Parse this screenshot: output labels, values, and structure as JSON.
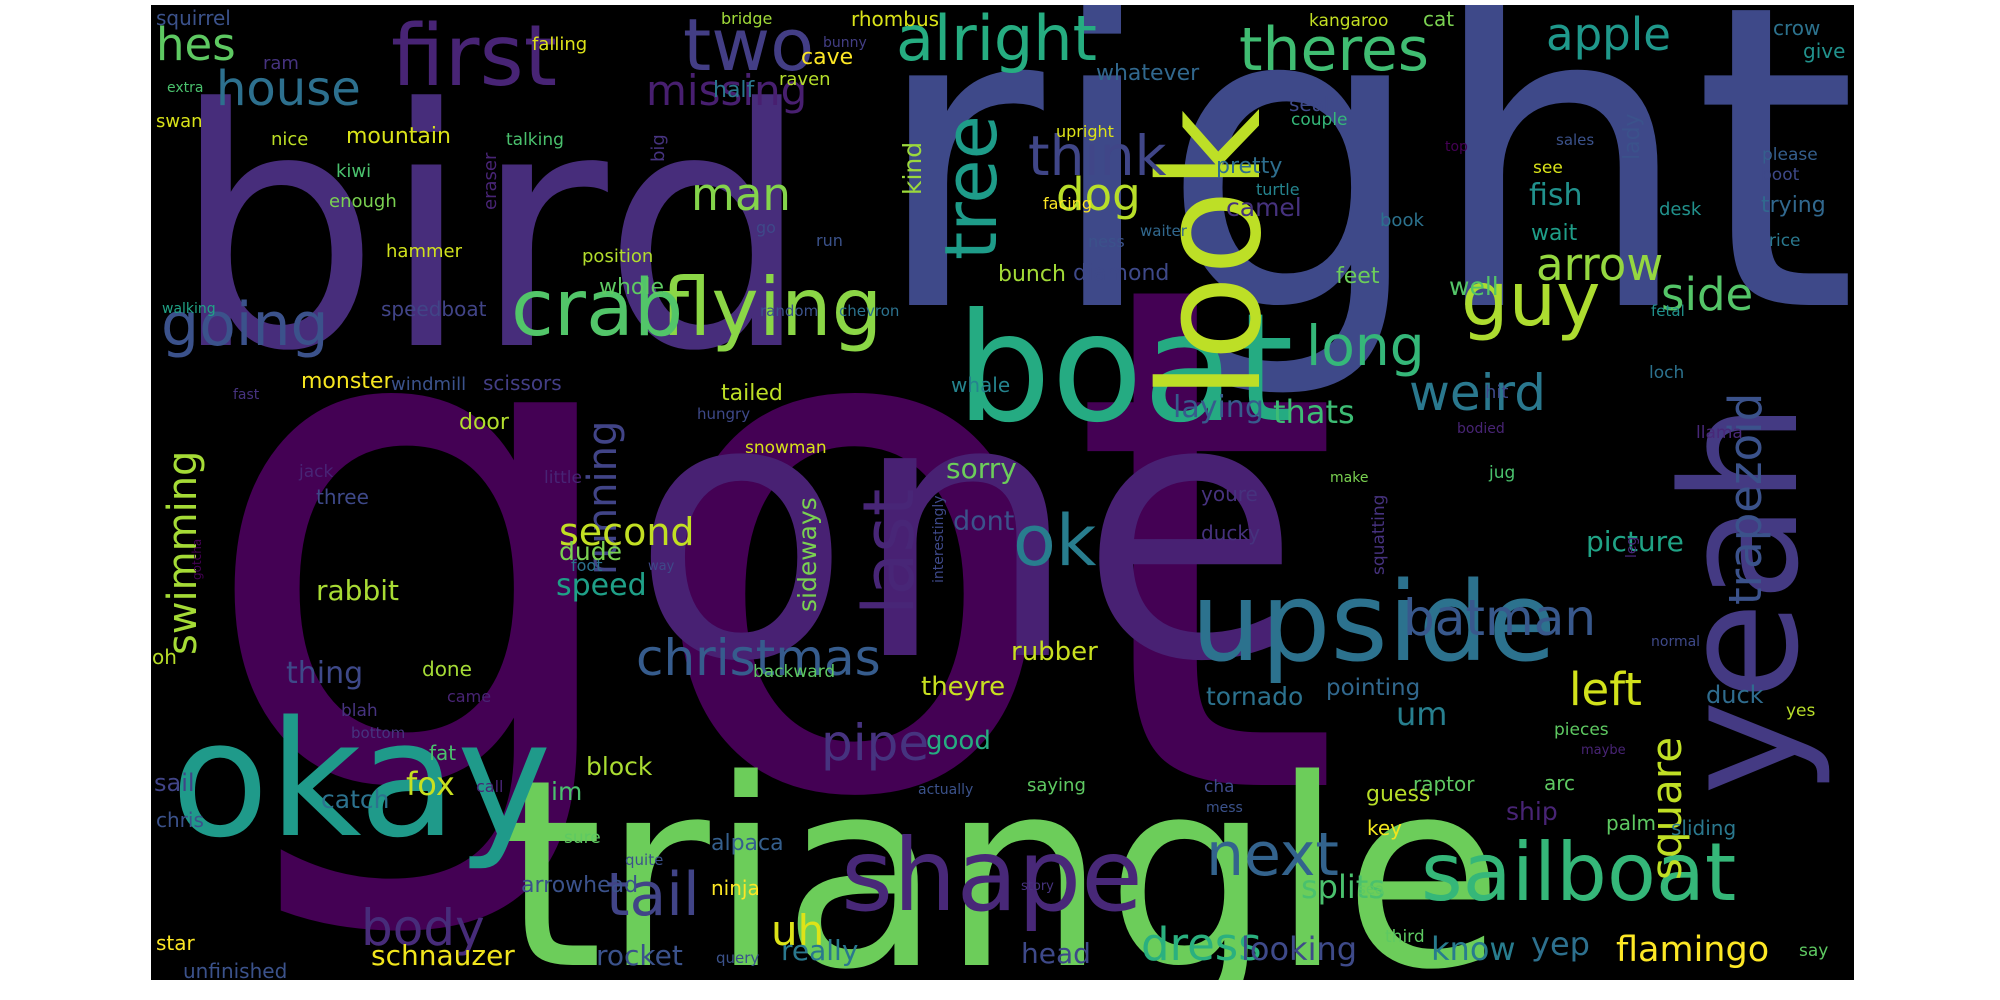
{
  "words": [
    {
      "text": "got",
      "color": "#440154"
    },
    {
      "text": "right",
      "color": "#3e4989"
    },
    {
      "text": "bird",
      "color": "#472d7b"
    },
    {
      "text": "one",
      "color": "#482173"
    },
    {
      "text": "triangle",
      "color": "#6ccd5a"
    },
    {
      "text": "okay",
      "color": "#1f9a8a"
    },
    {
      "text": "boat",
      "color": "#25ab82"
    },
    {
      "text": "look",
      "color": "#bddf26"
    },
    {
      "text": "yeah",
      "color": "#443a83"
    },
    {
      "text": "upside",
      "color": "#2c728e"
    },
    {
      "text": "sailboat",
      "color": "#35b779"
    },
    {
      "text": "shape",
      "color": "#482878"
    },
    {
      "text": "flying",
      "color": "#8bd646"
    },
    {
      "text": "crab",
      "color": "#52c569"
    },
    {
      "text": "first",
      "color": "#482475"
    },
    {
      "text": "two",
      "color": "#433e85"
    },
    {
      "text": "alright",
      "color": "#26ad81"
    },
    {
      "text": "theres",
      "color": "#40bd72"
    },
    {
      "text": "tree",
      "color": "#1e9c89"
    },
    {
      "text": "guy",
      "color": "#addc30"
    },
    {
      "text": "ok",
      "color": "#287d8e"
    },
    {
      "text": "last",
      "color": "#482677"
    },
    {
      "text": "christmas",
      "color": "#365c8d"
    },
    {
      "text": "batman",
      "color": "#38588c"
    },
    {
      "text": "tail",
      "color": "#414487"
    },
    {
      "text": "pipe",
      "color": "#46337f"
    },
    {
      "text": "next",
      "color": "#33638d"
    },
    {
      "text": "body",
      "color": "#472c7a"
    },
    {
      "text": "dress",
      "color": "#2ab07f"
    },
    {
      "text": "trapezoid",
      "color": "#3b528b"
    },
    {
      "text": "weird",
      "color": "#2a788e"
    },
    {
      "text": "long",
      "color": "#35b779"
    },
    {
      "text": "arrow",
      "color": "#95d840"
    },
    {
      "text": "side",
      "color": "#54c568"
    },
    {
      "text": "going",
      "color": "#3b528b"
    },
    {
      "text": "house",
      "color": "#2d708e"
    },
    {
      "text": "missing",
      "color": "#481f70"
    },
    {
      "text": "think",
      "color": "#404688"
    },
    {
      "text": "man",
      "color": "#84d44b"
    },
    {
      "text": "dog",
      "color": "#b8de29"
    },
    {
      "text": "hes",
      "color": "#5ec962"
    },
    {
      "text": "apple",
      "color": "#1f988b"
    },
    {
      "text": "left",
      "color": "#d2e21b"
    },
    {
      "text": "square",
      "color": "#c0df25"
    },
    {
      "text": "swimming",
      "color": "#a5db36"
    },
    {
      "text": "running",
      "color": "#414487"
    },
    {
      "text": "second",
      "color": "#c2df23"
    },
    {
      "text": "uh",
      "color": "#dde318"
    },
    {
      "text": "laying",
      "color": "#375b8d"
    },
    {
      "text": "thats",
      "color": "#3dbc74"
    },
    {
      "text": "yep",
      "color": "#2d708e"
    },
    {
      "text": "flamingo",
      "color": "#fde725"
    },
    {
      "text": "know",
      "color": "#287c8e"
    },
    {
      "text": "looking",
      "color": "#3e4a89"
    },
    {
      "text": "splits",
      "color": "#4ac16d"
    },
    {
      "text": "schnauzer",
      "color": "#f1e51d"
    },
    {
      "text": "rocket",
      "color": "#3b528b"
    },
    {
      "text": "really",
      "color": "#2a788e"
    },
    {
      "text": "head",
      "color": "#3e4989"
    },
    {
      "text": "fox",
      "color": "#c8e020"
    },
    {
      "text": "um",
      "color": "#277f8e"
    },
    {
      "text": "rubber",
      "color": "#c8e020"
    },
    {
      "text": "tornado",
      "color": "#2c728e"
    },
    {
      "text": "pointing",
      "color": "#31688e"
    },
    {
      "text": "duck",
      "color": "#2f6c8e"
    },
    {
      "text": "picture",
      "color": "#20a386"
    },
    {
      "text": "dont",
      "color": "#3b528b"
    },
    {
      "text": "sorry",
      "color": "#6ccd5a"
    },
    {
      "text": "speed",
      "color": "#1fa088"
    },
    {
      "text": "dude",
      "color": "#7ad151"
    },
    {
      "text": "rabbit",
      "color": "#a8db34"
    },
    {
      "text": "thing",
      "color": "#3e4989"
    },
    {
      "text": "catch",
      "color": "#2c728e"
    },
    {
      "text": "sail",
      "color": "#414487"
    },
    {
      "text": "block",
      "color": "#aadc32"
    },
    {
      "text": "im",
      "color": "#4ac16d"
    },
    {
      "text": "ship",
      "color": "#482475"
    },
    {
      "text": "guess",
      "color": "#b8de29"
    },
    {
      "text": "good",
      "color": "#26ad81"
    },
    {
      "text": "theyre",
      "color": "#c8e020"
    },
    {
      "text": "alpaca",
      "color": "#355f8d"
    },
    {
      "text": "arrowhead",
      "color": "#3b528b"
    },
    {
      "text": "ninja",
      "color": "#fde725"
    },
    {
      "text": "sideways",
      "color": "#7ad151"
    },
    {
      "text": "fish",
      "color": "#21918c"
    },
    {
      "text": "wait",
      "color": "#1f9e89"
    },
    {
      "text": "bunch",
      "color": "#a2da37"
    },
    {
      "text": "diamond",
      "color": "#3e4989"
    },
    {
      "text": "feet",
      "color": "#6ccd5a"
    },
    {
      "text": "well",
      "color": "#54c568"
    },
    {
      "text": "kind",
      "color": "#9bd93c"
    },
    {
      "text": "camel",
      "color": "#46327e"
    },
    {
      "text": "pretty",
      "color": "#2e6e8e"
    },
    {
      "text": "mountain",
      "color": "#dae319"
    },
    {
      "text": "hammer",
      "color": "#d0e11c"
    },
    {
      "text": "monster",
      "color": "#f6e620"
    },
    {
      "text": "windmill",
      "color": "#3b528b"
    },
    {
      "text": "scissors",
      "color": "#433e85"
    },
    {
      "text": "whale",
      "color": "#25848e"
    },
    {
      "text": "tailed",
      "color": "#bddf26"
    },
    {
      "text": "door",
      "color": "#b2dd2d"
    },
    {
      "text": "speedboat",
      "color": "#414487"
    },
    {
      "text": "whole",
      "color": "#5ec962"
    },
    {
      "text": "half",
      "color": "#2a788e"
    },
    {
      "text": "cave",
      "color": "#fde725"
    },
    {
      "text": "whatever",
      "color": "#31688e"
    },
    {
      "text": "seal",
      "color": "#3e4989"
    },
    {
      "text": "couple",
      "color": "#35b779"
    },
    {
      "text": "lady",
      "color": "#3b528b"
    },
    {
      "text": "crow",
      "color": "#2c728e"
    },
    {
      "text": "give",
      "color": "#21918c"
    },
    {
      "text": "cat",
      "color": "#7ad151"
    },
    {
      "text": "kangaroo",
      "color": "#c2df23"
    },
    {
      "text": "rhombus",
      "color": "#dae319"
    },
    {
      "text": "bridge",
      "color": "#a0da39"
    },
    {
      "text": "squirrel",
      "color": "#3b528b"
    },
    {
      "text": "ram",
      "color": "#46337f"
    },
    {
      "text": "falling",
      "color": "#dde318"
    },
    {
      "text": "bunny",
      "color": "#433e85"
    },
    {
      "text": "raven",
      "color": "#b5de2b"
    },
    {
      "text": "extra",
      "color": "#4ac16d"
    },
    {
      "text": "swan",
      "color": "#d8e219"
    },
    {
      "text": "nice",
      "color": "#bddf26"
    },
    {
      "text": "talking",
      "color": "#4ac16d"
    },
    {
      "text": "kiwi",
      "color": "#4ac16d"
    },
    {
      "text": "enough",
      "color": "#7ad151"
    },
    {
      "text": "eraser",
      "color": "#482475"
    },
    {
      "text": "big",
      "color": "#46337f"
    },
    {
      "text": "upright",
      "color": "#dde318"
    },
    {
      "text": "facing",
      "color": "#fde725"
    },
    {
      "text": "turtle",
      "color": "#25848e"
    },
    {
      "text": "see",
      "color": "#dae319"
    },
    {
      "text": "sales",
      "color": "#3b528b"
    },
    {
      "text": "top",
      "color": "#440154"
    },
    {
      "text": "please",
      "color": "#355f8d"
    },
    {
      "text": "boot",
      "color": "#3e4989"
    },
    {
      "text": "trying",
      "color": "#31688e"
    },
    {
      "text": "desk",
      "color": "#21918c"
    },
    {
      "text": "rice",
      "color": "#2a788e"
    },
    {
      "text": "book",
      "color": "#2c728e"
    },
    {
      "text": "waiter",
      "color": "#31688e"
    },
    {
      "text": "ness",
      "color": "#3b528b"
    },
    {
      "text": "go",
      "color": "#3e4989"
    },
    {
      "text": "run",
      "color": "#3b528b"
    },
    {
      "text": "position",
      "color": "#b2dd2d"
    },
    {
      "text": "walking",
      "color": "#20a386"
    },
    {
      "text": "random",
      "color": "#3b528b"
    },
    {
      "text": "chevron",
      "color": "#2c728e"
    },
    {
      "text": "fetal",
      "color": "#21918c"
    },
    {
      "text": "fast",
      "color": "#46337f"
    },
    {
      "text": "hungry",
      "color": "#3e4989"
    },
    {
      "text": "hit",
      "color": "#3e4989"
    },
    {
      "text": "loch",
      "color": "#2c728e"
    },
    {
      "text": "bodied",
      "color": "#482475"
    },
    {
      "text": "llama",
      "color": "#482878"
    },
    {
      "text": "jack",
      "color": "#482475"
    },
    {
      "text": "little",
      "color": "#482475"
    },
    {
      "text": "snowman",
      "color": "#d8e219"
    },
    {
      "text": "interestingly",
      "color": "#3e4989"
    },
    {
      "text": "make",
      "color": "#7ad151"
    },
    {
      "text": "jug",
      "color": "#4ac16d"
    },
    {
      "text": "youre",
      "color": "#46327e"
    },
    {
      "text": "ducky",
      "color": "#46327e"
    },
    {
      "text": "squatting",
      "color": "#46327e"
    },
    {
      "text": "leg",
      "color": "#482878"
    },
    {
      "text": "three",
      "color": "#3e4989"
    },
    {
      "text": "gotcha",
      "color": "#440154"
    },
    {
      "text": "foot",
      "color": "#2c728e"
    },
    {
      "text": "way",
      "color": "#3e4989"
    },
    {
      "text": "oh",
      "color": "#b8de29"
    },
    {
      "text": "done",
      "color": "#a5db36"
    },
    {
      "text": "blah",
      "color": "#46337f"
    },
    {
      "text": "came",
      "color": "#482475"
    },
    {
      "text": "bottom",
      "color": "#46337f"
    },
    {
      "text": "fat",
      "color": "#4ac16d"
    },
    {
      "text": "backward",
      "color": "#5ec962"
    },
    {
      "text": "normal",
      "color": "#3e4989"
    },
    {
      "text": "yes",
      "color": "#b8de29"
    },
    {
      "text": "maybe",
      "color": "#482475"
    },
    {
      "text": "pieces",
      "color": "#5ec962"
    },
    {
      "text": "arc",
      "color": "#5ec962"
    },
    {
      "text": "raptor",
      "color": "#5ec962"
    },
    {
      "text": "key",
      "color": "#f1e51d"
    },
    {
      "text": "saying",
      "color": "#5ec962"
    },
    {
      "text": "actually",
      "color": "#3b528b"
    },
    {
      "text": "cha",
      "color": "#3e4989"
    },
    {
      "text": "mess",
      "color": "#3b528b"
    },
    {
      "text": "call",
      "color": "#482475"
    },
    {
      "text": "chris",
      "color": "#3b528b"
    },
    {
      "text": "sure",
      "color": "#5ec962"
    },
    {
      "text": "quite",
      "color": "#3b528b"
    },
    {
      "text": "palm",
      "color": "#5ec962"
    },
    {
      "text": "sliding",
      "color": "#2a788e"
    },
    {
      "text": "say",
      "color": "#5ec962"
    },
    {
      "text": "story",
      "color": "#46337f"
    },
    {
      "text": "sea",
      "color": "#5ec962"
    },
    {
      "text": "third",
      "color": "#5ec962"
    },
    {
      "text": "star",
      "color": "#fde725"
    },
    {
      "text": "unfinished",
      "color": "#3b528b"
    },
    {
      "text": "query",
      "color": "#3b528b"
    }
  ]
}
